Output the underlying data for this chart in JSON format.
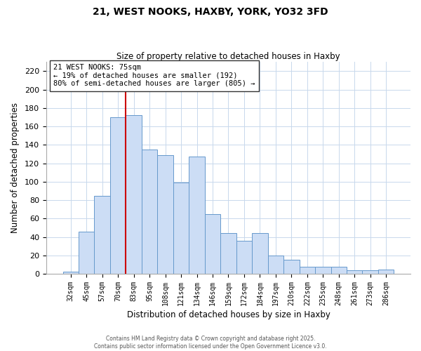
{
  "title": "21, WEST NOOKS, HAXBY, YORK, YO32 3FD",
  "subtitle": "Size of property relative to detached houses in Haxby",
  "xlabel": "Distribution of detached houses by size in Haxby",
  "ylabel": "Number of detached properties",
  "categories": [
    "32sqm",
    "45sqm",
    "57sqm",
    "70sqm",
    "83sqm",
    "95sqm",
    "108sqm",
    "121sqm",
    "134sqm",
    "146sqm",
    "159sqm",
    "172sqm",
    "184sqm",
    "197sqm",
    "210sqm",
    "222sqm",
    "235sqm",
    "248sqm",
    "261sqm",
    "273sqm",
    "286sqm"
  ],
  "values": [
    2,
    46,
    85,
    170,
    172,
    135,
    129,
    99,
    127,
    65,
    44,
    36,
    44,
    20,
    15,
    8,
    8,
    8,
    4,
    4,
    5
  ],
  "bar_color": "#ccddf5",
  "bar_edge_color": "#6699cc",
  "vline_x_idx": 3,
  "vline_color": "#cc0000",
  "annotation_text": "21 WEST NOOKS: 75sqm\n← 19% of detached houses are smaller (192)\n80% of semi-detached houses are larger (805) →",
  "annotation_box_color": "#ffffff",
  "annotation_box_edge": "#333333",
  "ylim": [
    0,
    230
  ],
  "yticks": [
    0,
    20,
    40,
    60,
    80,
    100,
    120,
    140,
    160,
    180,
    200,
    220
  ],
  "footer_line1": "Contains HM Land Registry data © Crown copyright and database right 2025.",
  "footer_line2": "Contains public sector information licensed under the Open Government Licence v3.0.",
  "background_color": "#ffffff",
  "grid_color": "#c8d8ec"
}
